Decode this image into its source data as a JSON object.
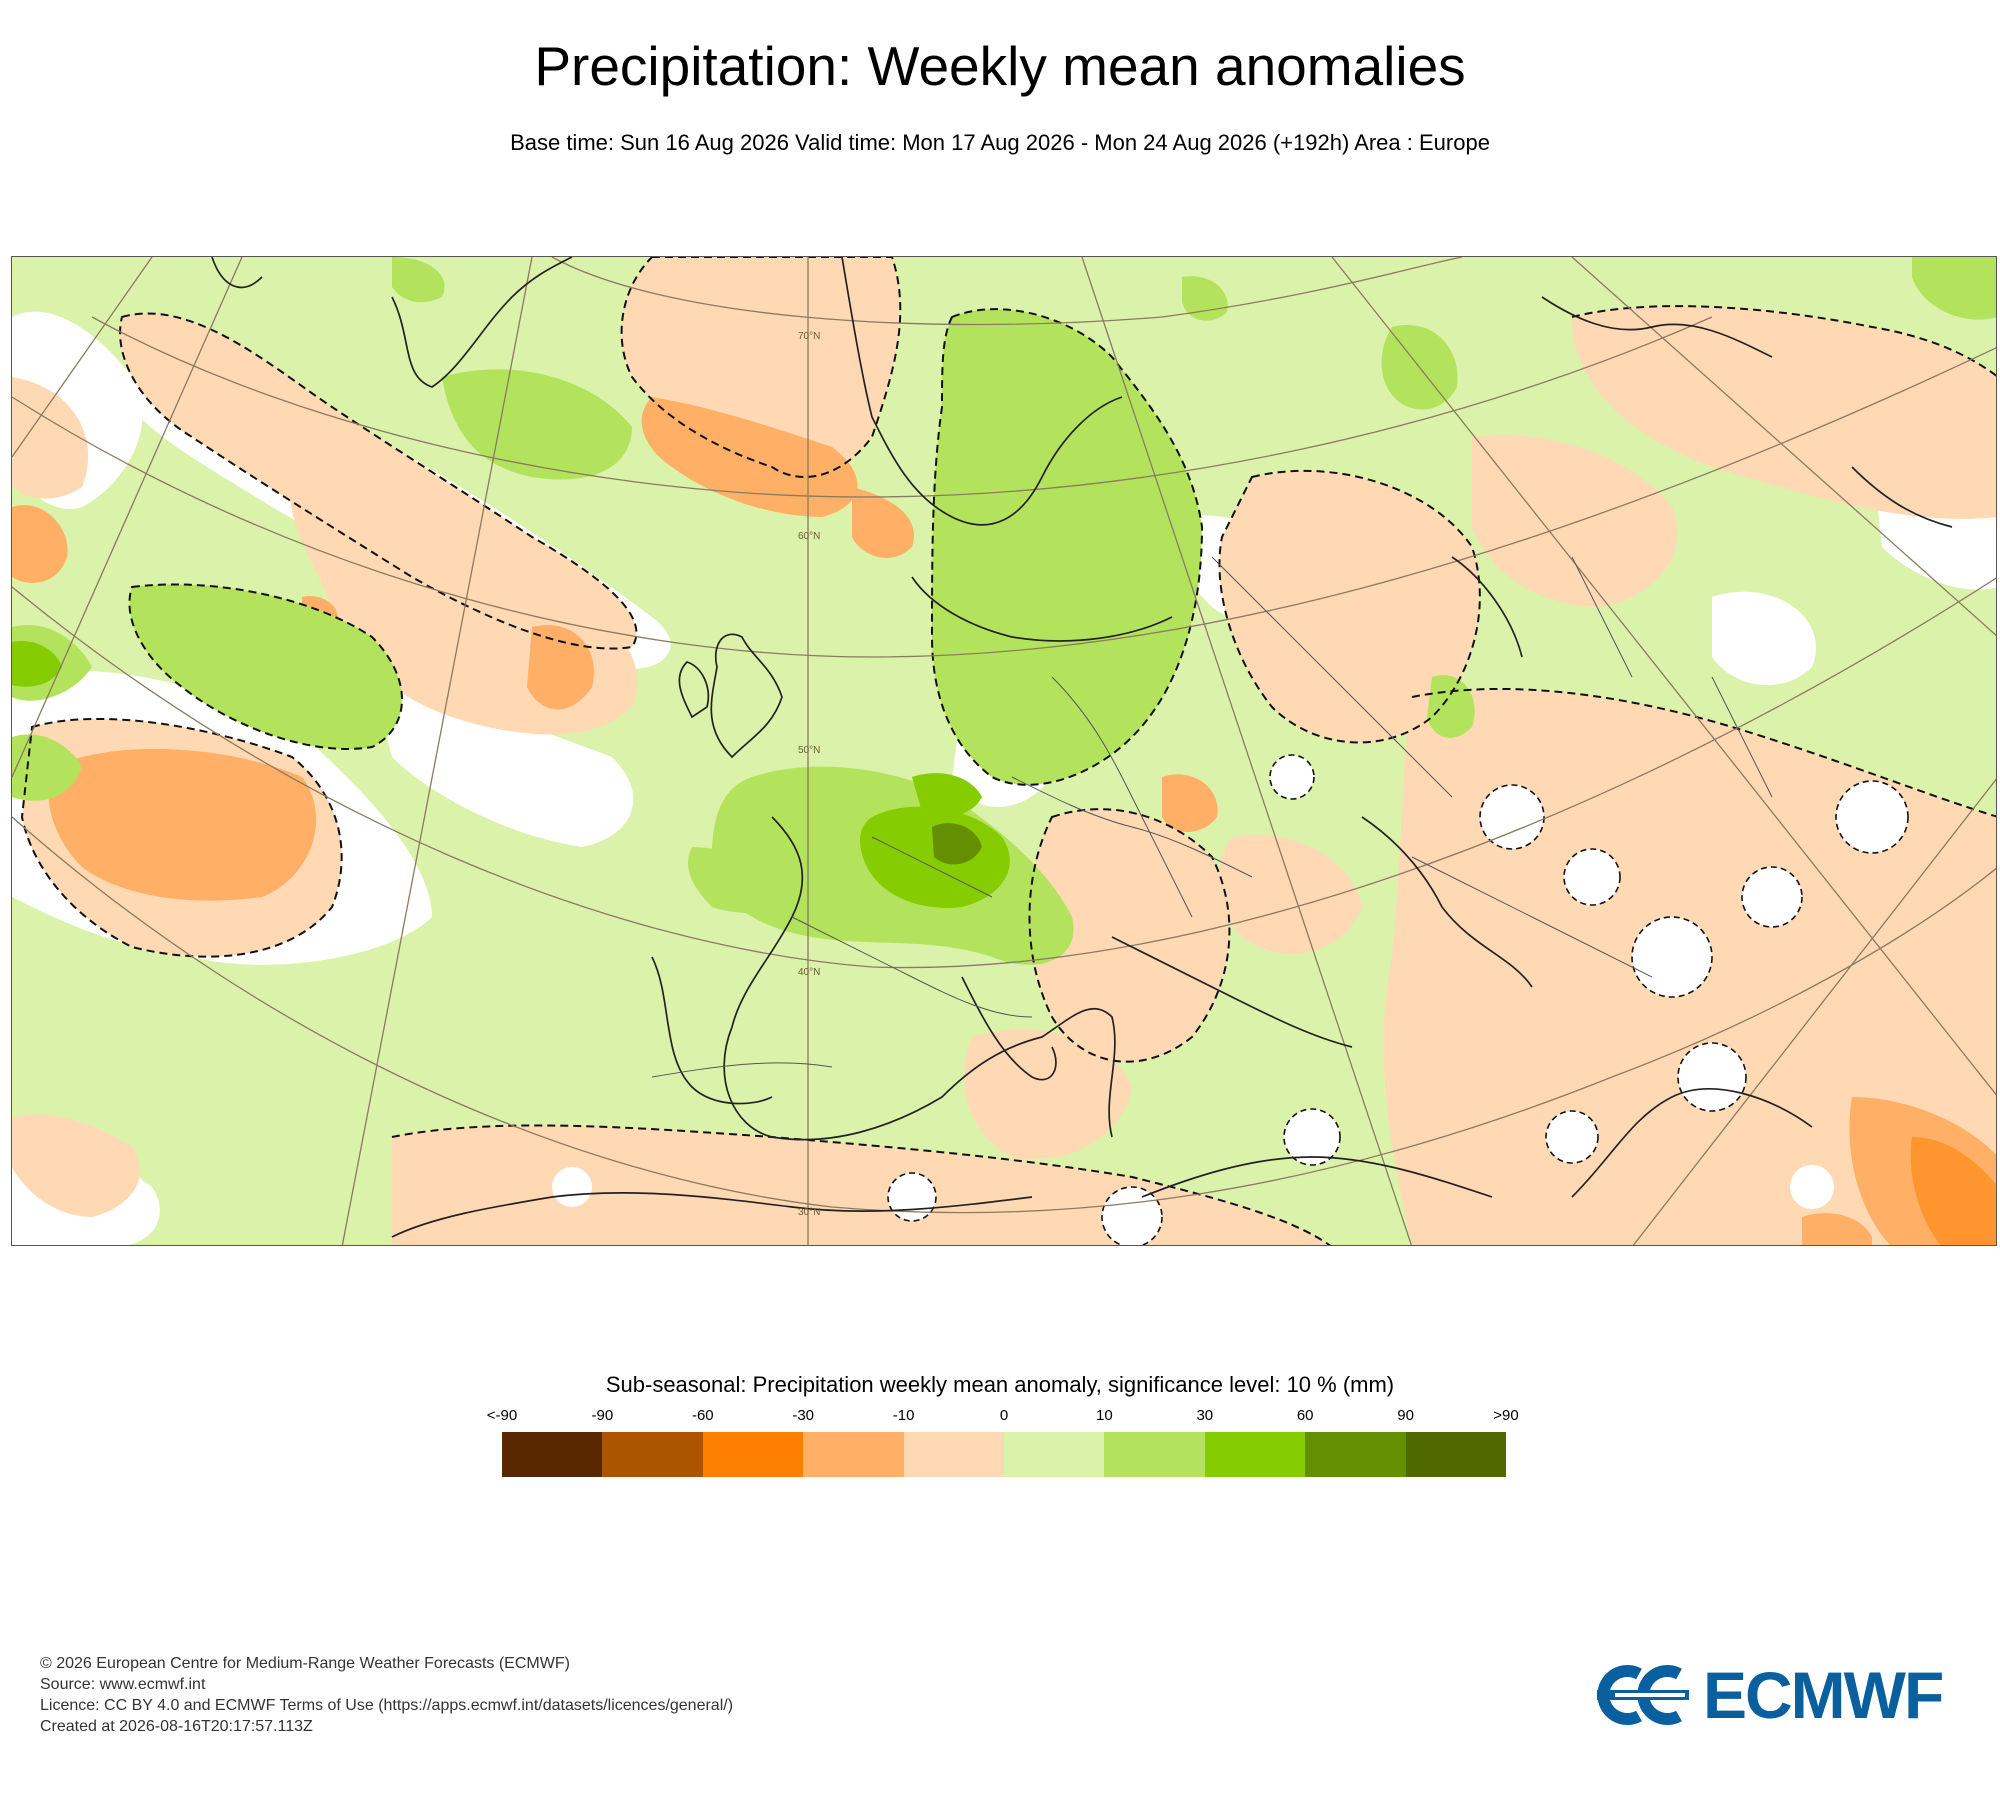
{
  "header": {
    "title": "Precipitation: Weekly mean anomalies",
    "subtitle": "Base time: Sun 16 Aug 2026 Valid time: Mon 17 Aug 2026 - Mon 24 Aug 2026 (+192h) Area : Europe"
  },
  "map": {
    "latitude_labels": [
      "70°N",
      "60°N",
      "50°N",
      "40°N",
      "30°N"
    ]
  },
  "legend": {
    "title": "Sub-seasonal: Precipitation weekly mean anomaly, significance level: 10 % (mm)",
    "labels": [
      "<-90",
      "-90",
      "-60",
      "-30",
      "-10",
      "0",
      "10",
      "30",
      "60",
      "90",
      ">90"
    ],
    "colors": [
      "#5a2800",
      "#ad5400",
      "#ff7f00",
      "#ffb066",
      "#ffd9b3",
      "#dbf2aa",
      "#b3e35c",
      "#85cc00",
      "#638f00",
      "#4f6900"
    ]
  },
  "footer": {
    "lines": [
      "© 2026 European Centre for Medium-Range Weather Forecasts (ECMWF)",
      "Source: www.ecmwf.int",
      "Licence: CC BY 4.0 and ECMWF Terms of Use (https://apps.ecmwf.int/datasets/licences/general/)",
      "Created at 2026-08-16T20:17:57.113Z"
    ]
  },
  "logo": {
    "text": "ECMWF",
    "color": "#0a5f9e"
  }
}
